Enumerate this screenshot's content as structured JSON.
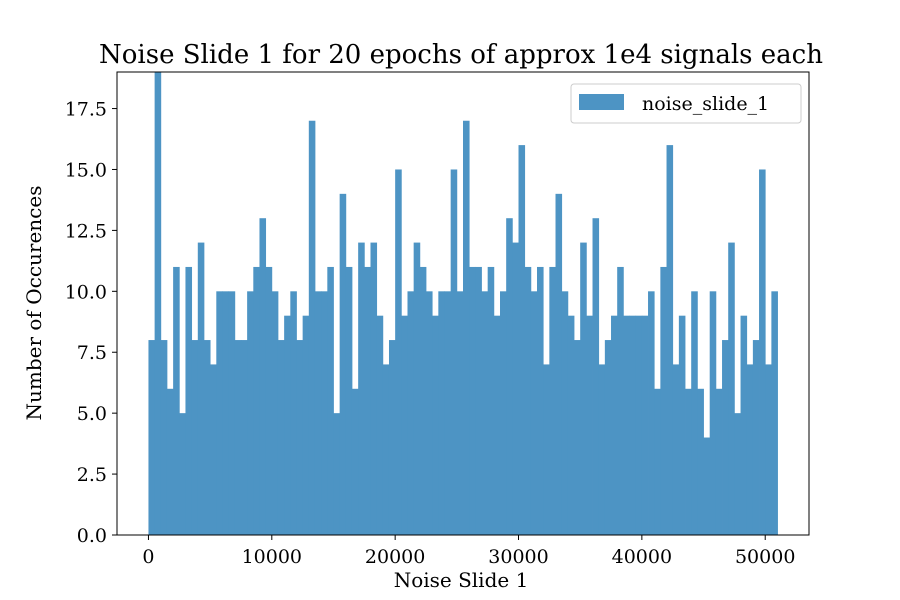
{
  "chart_data": {
    "type": "bar",
    "title": "Noise Slide 1 for 20 epochs of approx 1e4 signals each",
    "xlabel": "Noise Slide 1",
    "ylabel": "Number of Occurences",
    "xlim": [
      -2550,
      53550
    ],
    "ylim": [
      0,
      19
    ],
    "xticks": [
      0,
      10000,
      20000,
      30000,
      40000,
      50000
    ],
    "yticks": [
      0.0,
      2.5,
      5.0,
      7.5,
      10.0,
      12.5,
      15.0,
      17.5
    ],
    "bin_start": 0,
    "bin_end": 51000,
    "grid": false,
    "legend": {
      "position": "top-right",
      "entries": [
        "noise_slide_1"
      ]
    },
    "series": [
      {
        "name": "noise_slide_1",
        "color": "#4d94c4",
        "values": [
          8,
          19,
          8,
          6,
          11,
          5,
          11,
          8,
          12,
          8,
          7,
          10,
          10,
          10,
          8,
          8,
          10,
          11,
          13,
          11,
          10,
          8,
          9,
          10,
          8,
          9,
          17,
          10,
          10,
          11,
          5,
          14,
          11,
          6,
          12,
          11,
          12,
          9,
          7,
          8,
          15,
          9,
          10,
          12,
          11,
          10,
          9,
          10,
          10,
          15,
          10,
          17,
          11,
          11,
          10,
          11,
          9,
          10,
          13,
          12,
          16,
          11,
          10,
          11,
          7,
          11,
          14,
          10,
          9,
          8,
          12,
          9,
          13,
          7,
          8,
          9,
          11,
          9,
          9,
          9,
          9,
          10,
          6,
          11,
          16,
          7,
          9,
          6,
          10,
          6,
          4,
          10,
          6,
          8,
          12,
          5,
          9,
          7,
          8,
          15,
          7,
          10
        ]
      }
    ]
  }
}
